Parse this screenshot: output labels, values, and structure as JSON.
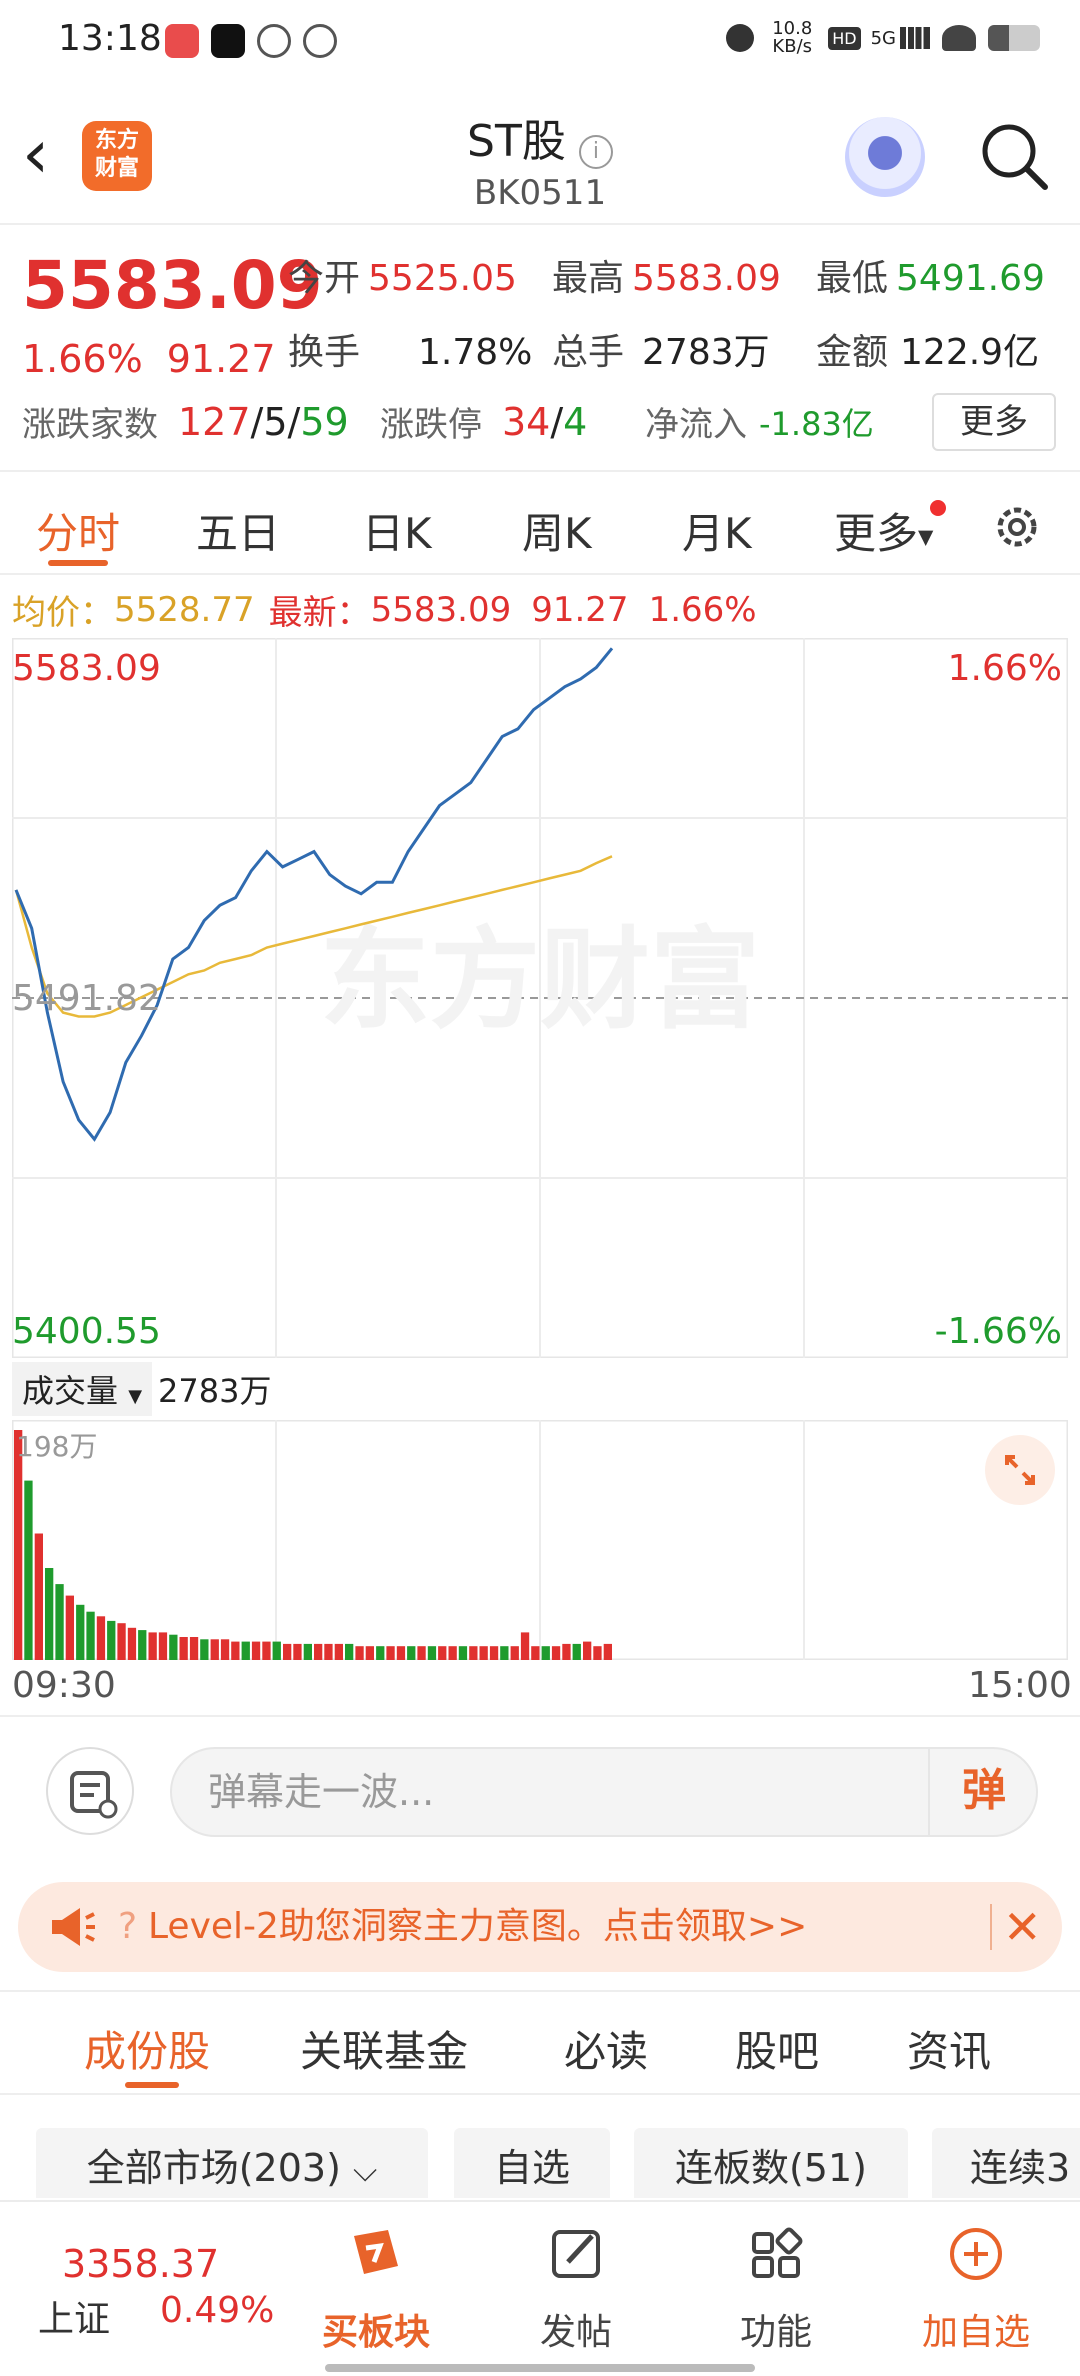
{
  "status_bar": {
    "time": "13:18",
    "net_speed": "10.8\nKB/s",
    "signal": "5G",
    "hd": "HD"
  },
  "header": {
    "title": "ST股",
    "code": "BK0511",
    "logo_text": "东方\n财富"
  },
  "quote": {
    "price": "5583.09",
    "change_pct": "1.66%",
    "change": "91.27",
    "open_label": "今开",
    "open": "5525.05",
    "high_label": "最高",
    "high": "5583.09",
    "low_label": "最低",
    "low": "5491.69",
    "turnover_label": "换手",
    "turnover": "1.78%",
    "volume_label": "总手",
    "volume": "2783万",
    "amount_label": "金额",
    "amount": "122.9亿",
    "breadth_label": "涨跌家数",
    "up": "127",
    "flat": "5",
    "down": "59",
    "limit_label": "涨跌停",
    "limit_up": "34",
    "limit_down": "4",
    "inflow_label": "净流入",
    "inflow": "-1.83亿",
    "more_button": "更多"
  },
  "chart_tabs": [
    "分时",
    "五日",
    "日K",
    "周K",
    "月K",
    "更多"
  ],
  "chart_info": {
    "avg_label": "均价：",
    "avg": "5528.77",
    "latest_label": "最新：",
    "latest": "5583.09",
    "chg": "91.27",
    "pct": "1.66%"
  },
  "chart_data": {
    "type": "line",
    "title": "",
    "y_top": "5583.09",
    "y_mid": "5491.82",
    "y_bottom": "5400.55",
    "pct_top": "1.66%",
    "pct_bottom": "-1.66%",
    "ylim": [
      5400.55,
      5583.09
    ],
    "x_start": "09:30",
    "x_end": "15:00",
    "watermark": "东方财富",
    "price_series": [
      5520,
      5510,
      5488,
      5470,
      5460,
      5455,
      5462,
      5475,
      5482,
      5490,
      5502,
      5505,
      5512,
      5516,
      5518,
      5525,
      5530,
      5526,
      5528,
      5530,
      5524,
      5521,
      5519,
      5522,
      5522,
      5530,
      5536,
      5542,
      5545,
      5548,
      5554,
      5560,
      5562,
      5567,
      5570,
      5573,
      5575,
      5578,
      5583
    ],
    "avg_series": [
      5520,
      5505,
      5493,
      5488,
      5487,
      5487,
      5488,
      5490,
      5492,
      5494,
      5496,
      5498,
      5499,
      5501,
      5502,
      5503,
      5505,
      5506,
      5507,
      5508,
      5509,
      5510,
      5511,
      5512,
      5513,
      5514,
      5515,
      5516,
      5517,
      5518,
      5519,
      5520,
      5521,
      5522,
      5523,
      5524,
      5525,
      5527,
      5528.77
    ],
    "volume_label": "成交量",
    "volume_total": "2783万",
    "volume_max_label": "198万",
    "volume_series": [
      100,
      78,
      55,
      40,
      33,
      28,
      24,
      21,
      19,
      17,
      16,
      14,
      13,
      12,
      12,
      11,
      10,
      10,
      9,
      9,
      9,
      8,
      8,
      8,
      8,
      8,
      7,
      7,
      7,
      7,
      7,
      7,
      7,
      6,
      6,
      6,
      6,
      6,
      6,
      6,
      6,
      6,
      6,
      6,
      6,
      6,
      6,
      6,
      6,
      12,
      6,
      6,
      6,
      7,
      7,
      8,
      6,
      7
    ],
    "volume_colors": [
      "r",
      "g",
      "r",
      "g",
      "g",
      "r",
      "g",
      "g",
      "r",
      "g",
      "r",
      "r",
      "g",
      "r",
      "r",
      "g",
      "r",
      "r",
      "g",
      "r",
      "r",
      "r",
      "g",
      "r",
      "r",
      "g",
      "r",
      "r",
      "g",
      "r",
      "r",
      "r",
      "g",
      "r",
      "r",
      "g",
      "r",
      "r",
      "g",
      "r",
      "g",
      "r",
      "r",
      "g",
      "r",
      "r",
      "r",
      "g",
      "r",
      "r",
      "r",
      "g",
      "r",
      "r",
      "g",
      "r",
      "r",
      "r"
    ]
  },
  "danmu": {
    "placeholder": "弹幕走一波...",
    "button": "弹"
  },
  "banner": {
    "text": "Level-2助您洞察主力意图。点击领取>>",
    "q": "?"
  },
  "sub_tabs": [
    "成份股",
    "关联基金",
    "必读",
    "股吧",
    "资讯"
  ],
  "filters": [
    "全部市场(203)",
    "自选",
    "连板数(51)",
    "连续3"
  ],
  "bottom_nav": {
    "index_value": "3358.37",
    "index_name": "上证",
    "index_change": "0.49%",
    "items": [
      "买板块",
      "发帖",
      "功能",
      "加自选"
    ]
  },
  "colors": {
    "up": "#e0312f",
    "down": "#1f9b2d",
    "accent": "#e8632a",
    "price_line": "#2f6bb0",
    "avg_line": "#e8b93a"
  }
}
